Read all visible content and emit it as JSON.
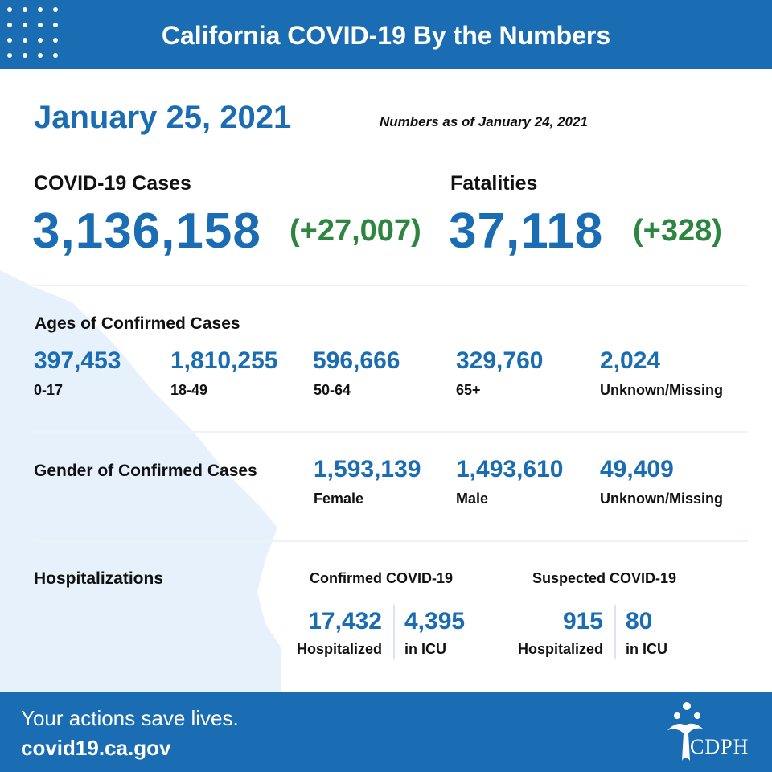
{
  "header": {
    "title": "California COVID-19 By the Numbers"
  },
  "summary": {
    "date": "January 25, 2021",
    "as_of": "Numbers as of January 24, 2021",
    "cases": {
      "label": "COVID-19 Cases",
      "value": "3,136,158",
      "delta": "(+27,007)"
    },
    "fatalities": {
      "label": "Fatalities",
      "value": "37,118",
      "delta": "(+328)"
    }
  },
  "ages": {
    "title": "Ages of Confirmed Cases",
    "groups": [
      {
        "value": "397,453",
        "label": "0-17"
      },
      {
        "value": "1,810,255",
        "label": "18-49"
      },
      {
        "value": "596,666",
        "label": "50-64"
      },
      {
        "value": "329,760",
        "label": "65+"
      },
      {
        "value": "2,024",
        "label": "Unknown/Missing"
      }
    ]
  },
  "gender": {
    "title": "Gender of Confirmed Cases",
    "groups": [
      {
        "value": "1,593,139",
        "label": "Female"
      },
      {
        "value": "1,493,610",
        "label": "Male"
      },
      {
        "value": "49,409",
        "label": "Unknown/Missing"
      }
    ]
  },
  "hospitalizations": {
    "title": "Hospitalizations",
    "confirmed": {
      "title": "Confirmed COVID-19",
      "hospitalized": {
        "value": "17,432",
        "label": "Hospitalized"
      },
      "icu": {
        "value": "4,395",
        "label": "in ICU"
      }
    },
    "suspected": {
      "title": "Suspected COVID-19",
      "hospitalized": {
        "value": "915",
        "label": "Hospitalized"
      },
      "icu": {
        "value": "80",
        "label": "in ICU"
      }
    }
  },
  "footer": {
    "tagline": "Your actions save lives.",
    "url": "covid19.ca.gov",
    "logo_text": "CDPH"
  },
  "colors": {
    "brand_blue": "#1a6cb3",
    "delta_green": "#2e8540",
    "state_fill": "#e6f1fb"
  }
}
